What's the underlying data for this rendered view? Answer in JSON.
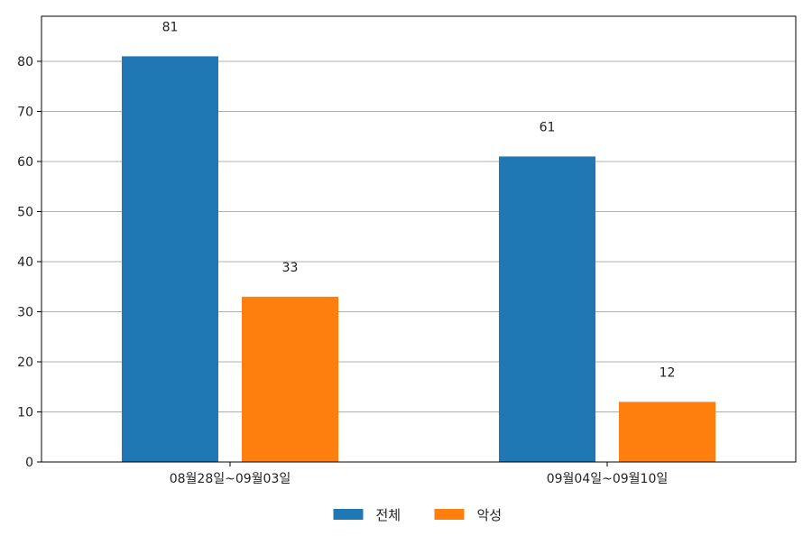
{
  "chart_data": {
    "type": "bar",
    "categories": [
      "08월28일~09월03일",
      "09월04일~09월10일"
    ],
    "series": [
      {
        "name": "전체",
        "values": [
          81,
          61
        ],
        "color": "#1f77b4"
      },
      {
        "name": "악성",
        "values": [
          33,
          12
        ],
        "color": "#ff7f0e"
      }
    ],
    "title": "",
    "xlabel": "",
    "ylabel": "",
    "ylim": [
      0,
      89
    ],
    "yticks": [
      0,
      10,
      20,
      30,
      40,
      50,
      60,
      70,
      80
    ],
    "grid": "horizontal",
    "legend": "bottom-center",
    "data_labels": true
  }
}
